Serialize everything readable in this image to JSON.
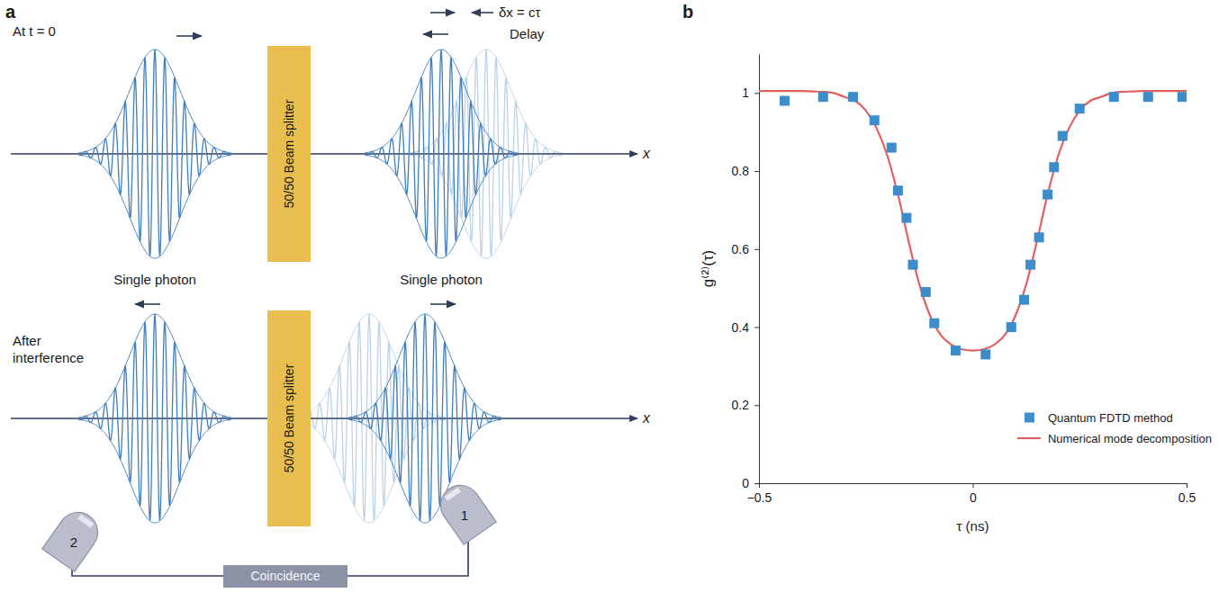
{
  "panels": [
    "a",
    "b"
  ],
  "diagram": {
    "top": {
      "caption": "At t = 0",
      "beam_splitter": "50/50 Beam splitter",
      "left_label": "Single photon",
      "right_label": "Single photon",
      "shift": "δx = cτ",
      "delay": "Delay",
      "axis": "x"
    },
    "bottom": {
      "caption": "After interference",
      "beam_splitter": "50/50 Beam splitter",
      "axis": "x",
      "detectors": [
        "2",
        "1"
      ],
      "coincidence": "Coincidence"
    }
  },
  "chart_data": {
    "type": "line",
    "x_label": "τ (ns)",
    "y_label": "g⁽²⁾(τ)",
    "xlim": [
      -0.5,
      0.5
    ],
    "xticks": [
      {
        "value": -0.5,
        "label": "−0.5"
      },
      0,
      0.5
    ],
    "ylim": [
      0,
      1.1
    ],
    "yticks": [
      0,
      0.2,
      0.4,
      0.6,
      0.8,
      1
    ],
    "grid": false,
    "legend": "lower right",
    "series": [
      {
        "name": "Quantum FDTD method",
        "type": "scatter",
        "marker": "square",
        "color": "#3d8ccb",
        "x": [
          -0.44,
          -0.35,
          -0.28,
          -0.23,
          -0.19,
          -0.175,
          -0.155,
          -0.14,
          -0.11,
          -0.09,
          -0.04,
          0.03,
          0.09,
          0.12,
          0.135,
          0.155,
          0.175,
          0.19,
          0.21,
          0.25,
          0.33,
          0.41,
          0.49
        ],
        "values": [
          0.98,
          0.99,
          0.99,
          0.93,
          0.86,
          0.75,
          0.68,
          0.56,
          0.49,
          0.41,
          0.34,
          0.33,
          0.4,
          0.47,
          0.56,
          0.63,
          0.74,
          0.81,
          0.89,
          0.96,
          0.99,
          0.99,
          0.99
        ]
      },
      {
        "name": "Numerical mode decomposition",
        "type": "line",
        "line_style": "solid",
        "color": "#e0605e",
        "x": [
          -0.5,
          -0.475,
          -0.45,
          -0.425,
          -0.4,
          -0.375,
          -0.35,
          -0.325,
          -0.3,
          -0.275,
          -0.25,
          -0.225,
          -0.2,
          -0.175,
          -0.15,
          -0.125,
          -0.1,
          -0.075,
          -0.05,
          -0.025,
          0,
          0.025,
          0.05,
          0.075,
          0.1,
          0.125,
          0.15,
          0.175,
          0.2,
          0.225,
          0.25,
          0.275,
          0.3,
          0.325,
          0.35,
          0.375,
          0.4,
          0.425,
          0.45,
          0.475,
          0.5
        ],
        "values": [
          1.005,
          1.005,
          1.005,
          1.005,
          1.005,
          1.004,
          1.003,
          1.0,
          0.99,
          0.98,
          0.955,
          0.91,
          0.84,
          0.74,
          0.62,
          0.51,
          0.43,
          0.38,
          0.355,
          0.343,
          0.34,
          0.343,
          0.355,
          0.38,
          0.43,
          0.51,
          0.62,
          0.74,
          0.84,
          0.91,
          0.955,
          0.98,
          0.99,
          1.0,
          1.003,
          1.004,
          1.005,
          1.005,
          1.005,
          1.005,
          1.005
        ]
      }
    ]
  }
}
